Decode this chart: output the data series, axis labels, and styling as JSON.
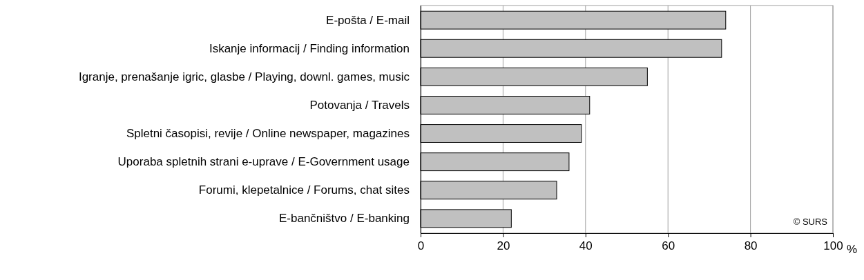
{
  "chart_data": {
    "type": "bar",
    "orientation": "horizontal",
    "categories": [
      "E-pošta / E-mail",
      "Iskanje informacij / Finding information",
      "Igranje, prenašanje igric, glasbe / Playing, downl. games, music",
      "Potovanja / Travels",
      "Spletni časopisi, revije / Online newspaper, magazines",
      "Uporaba spletnih strani e-uprave / E-Government usage",
      "Forumi, klepetalnice / Forums, chat sites",
      "E-bančništvo / E-banking"
    ],
    "values": [
      74,
      73,
      55,
      41,
      39,
      36,
      33,
      22
    ],
    "color": "#c0c0c0",
    "xlim": [
      0,
      100
    ],
    "xticks": [
      0,
      20,
      40,
      60,
      80,
      100
    ],
    "xlabel": "%",
    "grid": "x",
    "annotations": [
      "© SURS"
    ]
  }
}
